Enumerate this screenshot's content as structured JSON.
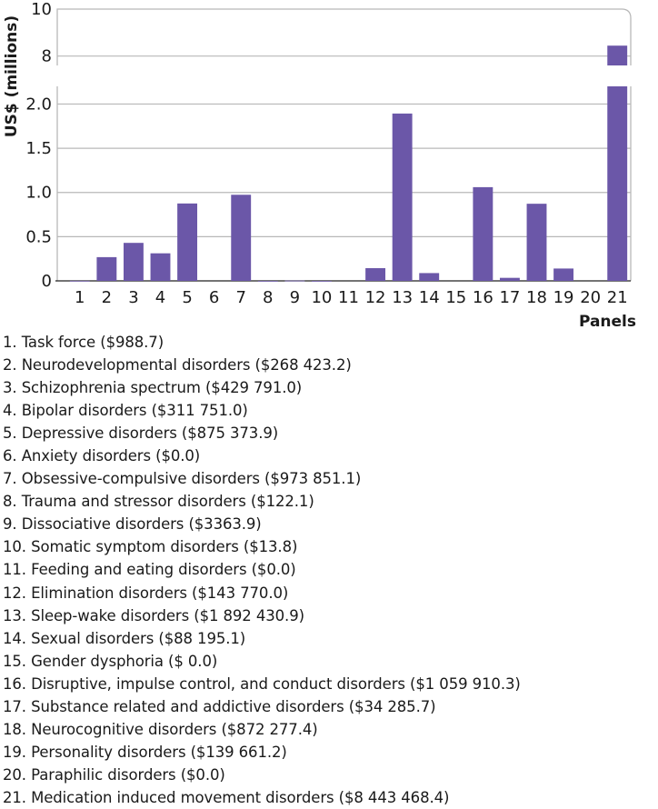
{
  "chart_data": {
    "type": "bar",
    "ylabel": "US$ (millions)",
    "xlabel": "Panels",
    "axis_break": {
      "lower_range": [
        0,
        2.2
      ],
      "upper_range": [
        7.6,
        10
      ]
    },
    "yticks_lower": [
      "0",
      "0.5",
      "1.0",
      "1.5",
      "2.0"
    ],
    "yticks_lower_values": [
      0,
      0.5,
      1.0,
      1.5,
      2.0
    ],
    "yticks_upper": [
      "8",
      "10"
    ],
    "yticks_upper_values": [
      8,
      10
    ],
    "categories": [
      "1",
      "2",
      "3",
      "4",
      "5",
      "6",
      "7",
      "8",
      "9",
      "10",
      "11",
      "12",
      "13",
      "14",
      "15",
      "16",
      "17",
      "18",
      "19",
      "20",
      "21"
    ],
    "values": [
      0.0009887,
      0.2684232,
      0.429791,
      0.311751,
      0.8753739,
      0.0,
      0.9738511,
      0.0001221,
      0.0033639,
      1.38e-05,
      0.0,
      0.14377,
      1.8924309,
      0.0881951,
      0.0,
      1.0599103,
      0.0342857,
      0.8722774,
      0.1396612,
      0.0,
      8.4434684
    ],
    "bar_color": "#6b57a8",
    "grid": true,
    "legend_items": [
      "1. Task force ($988.7)",
      "2. Neurodevelopmental disorders ($268 423.2)",
      "3. Schizophrenia spectrum ($429 791.0)",
      "4. Bipolar disorders ($311 751.0)",
      "5. Depressive disorders ($875 373.9)",
      "6. Anxiety disorders ($0.0)",
      "7. Obsessive-compulsive disorders ($973 851.1)",
      "8. Trauma and stressor disorders ($122.1)",
      "9. Dissociative disorders ($3363.9)",
      "10. Somatic symptom disorders ($13.8)",
      "11. Feeding and eating disorders ($0.0)",
      "12. Elimination disorders ($143 770.0)",
      "13. Sleep-wake disorders ($1 892 430.9)",
      "14. Sexual disorders ($88 195.1)",
      "15. Gender dysphoria ($ 0.0)",
      "16. Disruptive, impulse control, and conduct disorders ($1 059 910.3)",
      "17. Substance related and addictive disorders ($34 285.7)",
      "18. Neurocognitive disorders ($872 277.4)",
      "19. Personality disorders ($139 661.2)",
      "20. Paraphilic disorders ($0.0)",
      "21. Medication induced movement disorders ($8 443 468.4)"
    ]
  }
}
